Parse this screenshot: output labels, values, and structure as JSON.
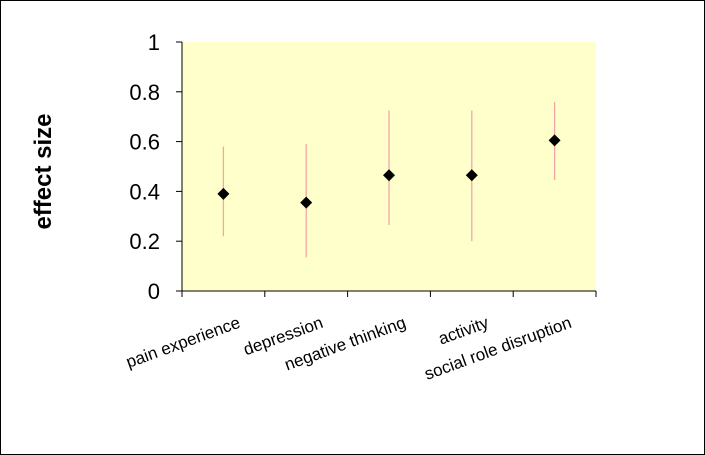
{
  "chart_data": {
    "type": "scatter",
    "title": "",
    "xlabel": "",
    "ylabel": "effect size",
    "ylim": [
      0,
      1
    ],
    "yticks": [
      0,
      0.2,
      0.4,
      0.6,
      0.8,
      1
    ],
    "ytick_labels": [
      "0",
      "0.2",
      "0.4",
      "0.6",
      "0.8",
      "1"
    ],
    "categories": [
      "pain experience",
      "depression",
      "negative thinking",
      "activity",
      "social role disruption"
    ],
    "series": [
      {
        "values": [
          0.39,
          0.355,
          0.465,
          0.465,
          0.605
        ],
        "error_low": [
          0.22,
          0.135,
          0.265,
          0.2,
          0.445
        ],
        "error_high": [
          0.58,
          0.59,
          0.725,
          0.725,
          0.76
        ]
      }
    ],
    "grid": false,
    "legend": "none",
    "colors": {
      "plot_background": "#FFFFCC",
      "marker": "#000000",
      "error_bar": "#F4A6A6",
      "axis": "#000000"
    }
  }
}
